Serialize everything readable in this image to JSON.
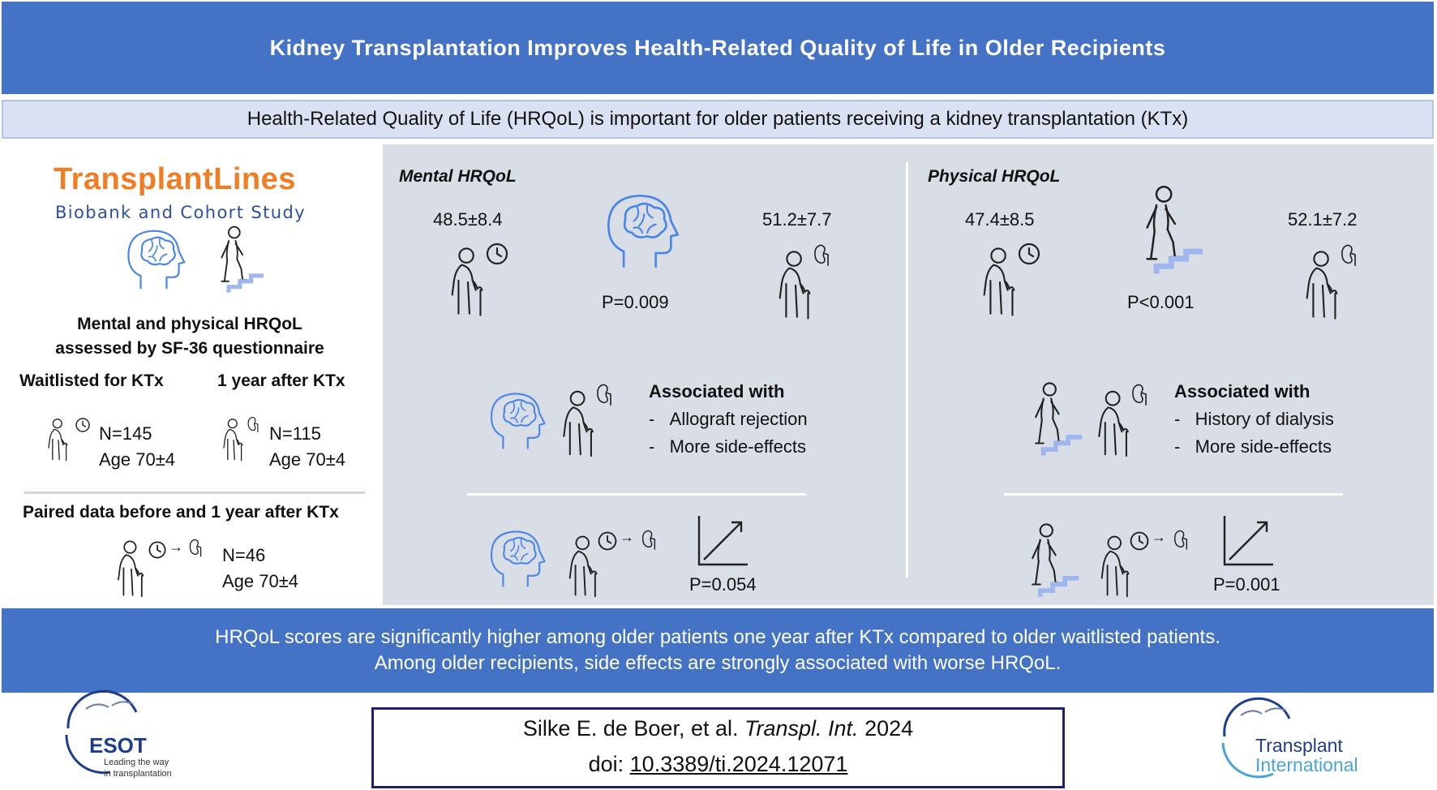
{
  "header": {
    "title": "Kidney Transplantation Improves Health-Related Quality of Life in Older Recipients",
    "subtitle": "Health-Related Quality of Life (HRQoL) is important for older patients receiving a kidney transplantation (KTx)"
  },
  "left": {
    "brand": "TransplantLines",
    "brand_sub": "Biobank and Cohort Study",
    "assess_line1": "Mental and physical HRQoL",
    "assess_line2": "assessed by SF-36 questionnaire",
    "wait_label": "Waitlisted for KTx",
    "after_label": "1 year after KTx",
    "wait_n": "N=145",
    "wait_age": "Age 70±4",
    "after_n": "N=115",
    "after_age": "Age 70±4",
    "paired_label": "Paired data before and 1 year after KTx",
    "paired_n": "N=46",
    "paired_age": "Age 70±4"
  },
  "mental": {
    "heading": "Mental HRQoL",
    "wait_score": "48.5±8.4",
    "after_score": "51.2±7.7",
    "p_value": "P=0.009",
    "assoc_heading": "Associated with",
    "assoc_items": [
      "Allograft rejection",
      "More side-effects"
    ],
    "paired_p": "P=0.054"
  },
  "physical": {
    "heading": "Physical HRQoL",
    "wait_score": "47.4±8.5",
    "after_score": "52.1±7.2",
    "p_value": "P<0.001",
    "assoc_heading": "Associated with",
    "assoc_items": [
      "History of dialysis",
      "More side-effects"
    ],
    "paired_p": "P=0.001"
  },
  "conclusion": {
    "line1": "HRQoL scores are significantly higher among older patients one year after KTx compared to older waitlisted patients.",
    "line2": "Among older recipients, side effects are strongly associated with worse HRQoL."
  },
  "footer": {
    "authors": "Silke E. de Boer, et al.",
    "journal": "Transpl. Int.",
    "year": "2024",
    "doi_label": "doi:",
    "doi": "10.3389/ti.2024.12071",
    "esot_name": "ESOT",
    "esot_tagline1": "Leading the way",
    "esot_tagline2": "in transplantation",
    "ti_line1": "Transplant",
    "ti_line2": "International"
  },
  "colors": {
    "banner": "#4472c4",
    "brand_orange": "#f07d23",
    "icon_blue": "#4a86e8",
    "panel_grey": "#d9dde6"
  }
}
